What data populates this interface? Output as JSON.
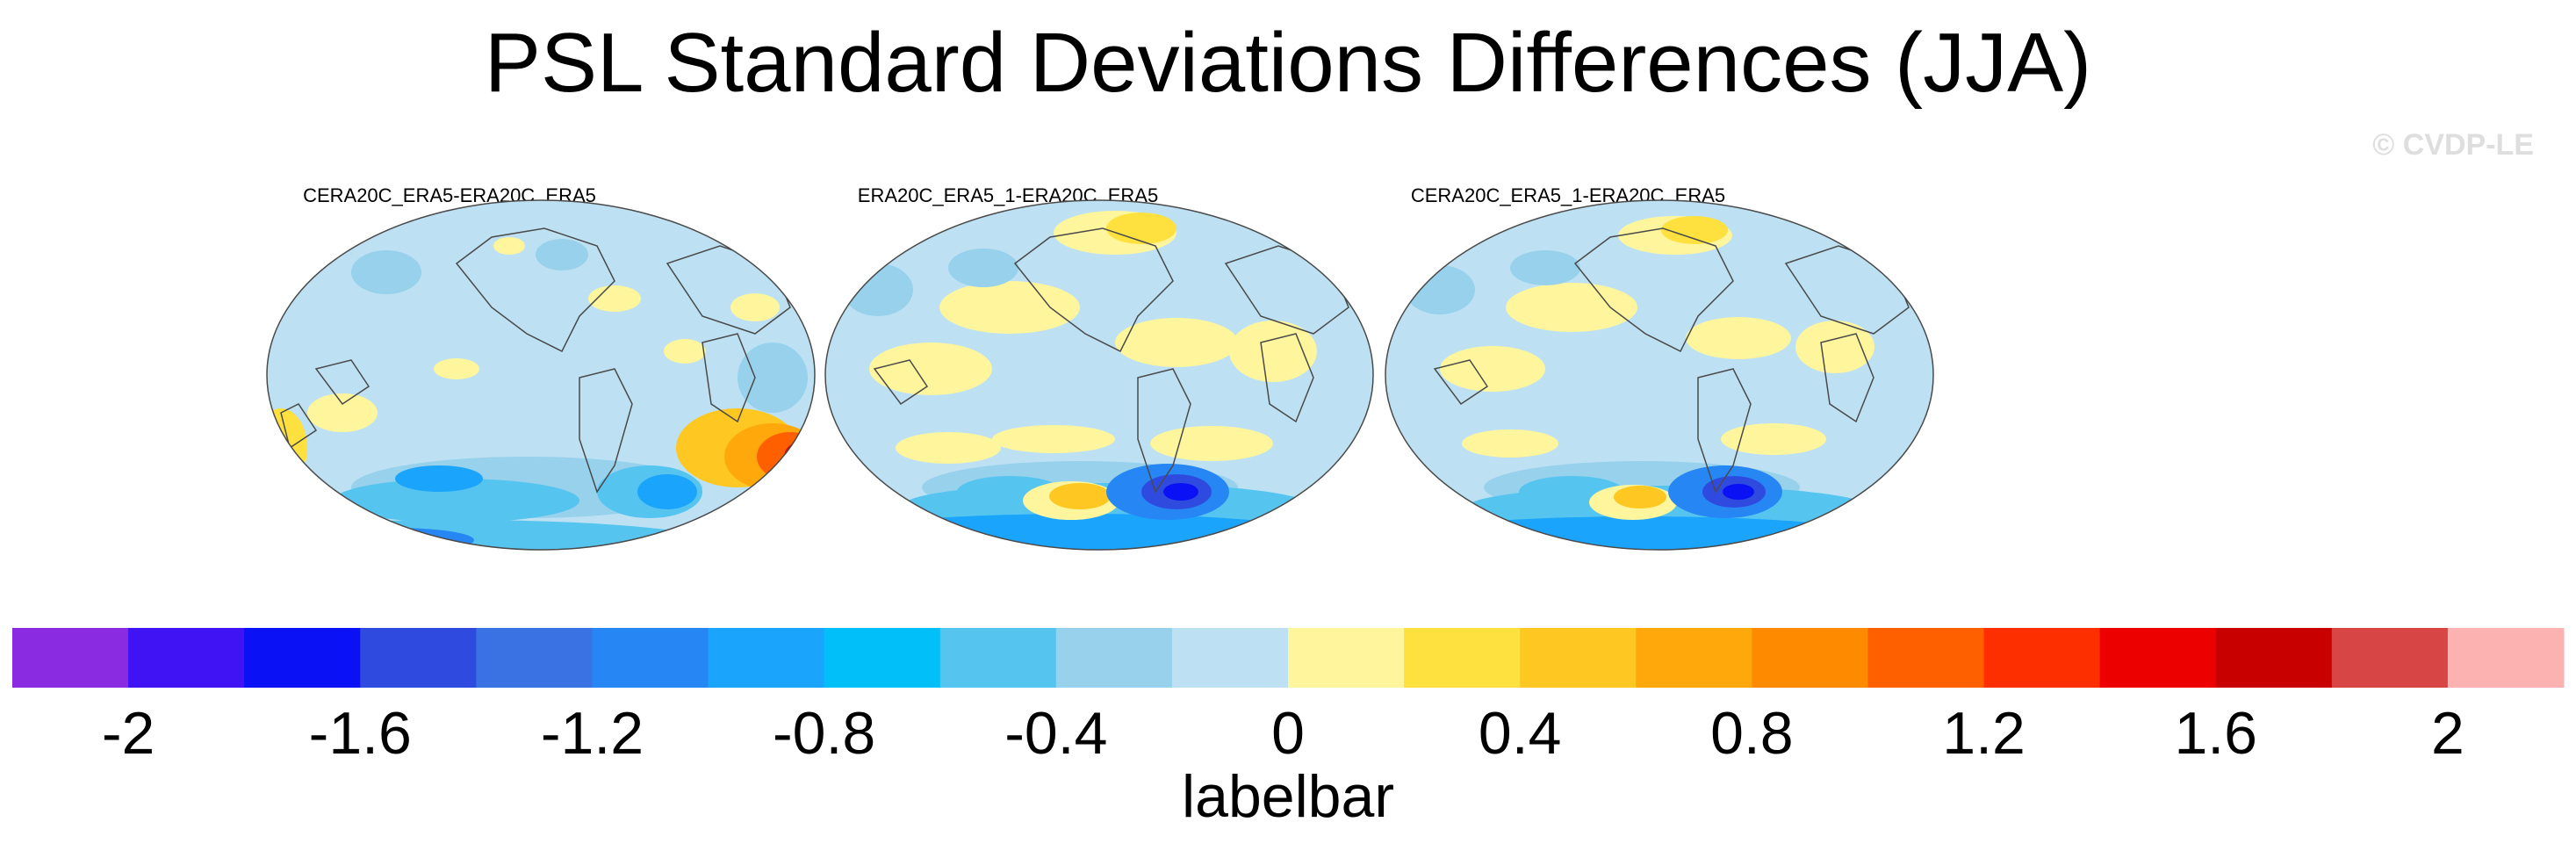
{
  "title": "PSL Standard Deviations Differences (JJA)",
  "watermark": "© CVDP-LE",
  "panels": [
    {
      "title": "CERA20C_ERA5-ERA20C_ERA5"
    },
    {
      "title": "ERA20C_ERA5_1-ERA20C_ERA5"
    },
    {
      "title": "CERA20C_ERA5_1-ERA20C_ERA5"
    }
  ],
  "labelbar": {
    "title": "labelbar",
    "tick_labels": [
      "-2",
      "-1.6",
      "-1.2",
      "-0.8",
      "-0.4",
      "0",
      "0.4",
      "0.8",
      "1.2",
      "1.6",
      "2"
    ],
    "colors": [
      "#8a2be2",
      "#4013f5",
      "#0a11f5",
      "#2f4bdf",
      "#3b72e3",
      "#2687f4",
      "#1ba4fb",
      "#00bff9",
      "#55c5f0",
      "#97d1ec",
      "#bde1f3",
      "#fef59c",
      "#fee13e",
      "#fec721",
      "#fea80b",
      "#fe8a00",
      "#fe6000",
      "#fd2e00",
      "#ec0000",
      "#c80000",
      "#d84545",
      "#fdb2b2"
    ]
  },
  "colors": {
    "ocean_base": "#bde1f3",
    "coast": "#4a4a4a",
    "background": "#ffffff"
  }
}
